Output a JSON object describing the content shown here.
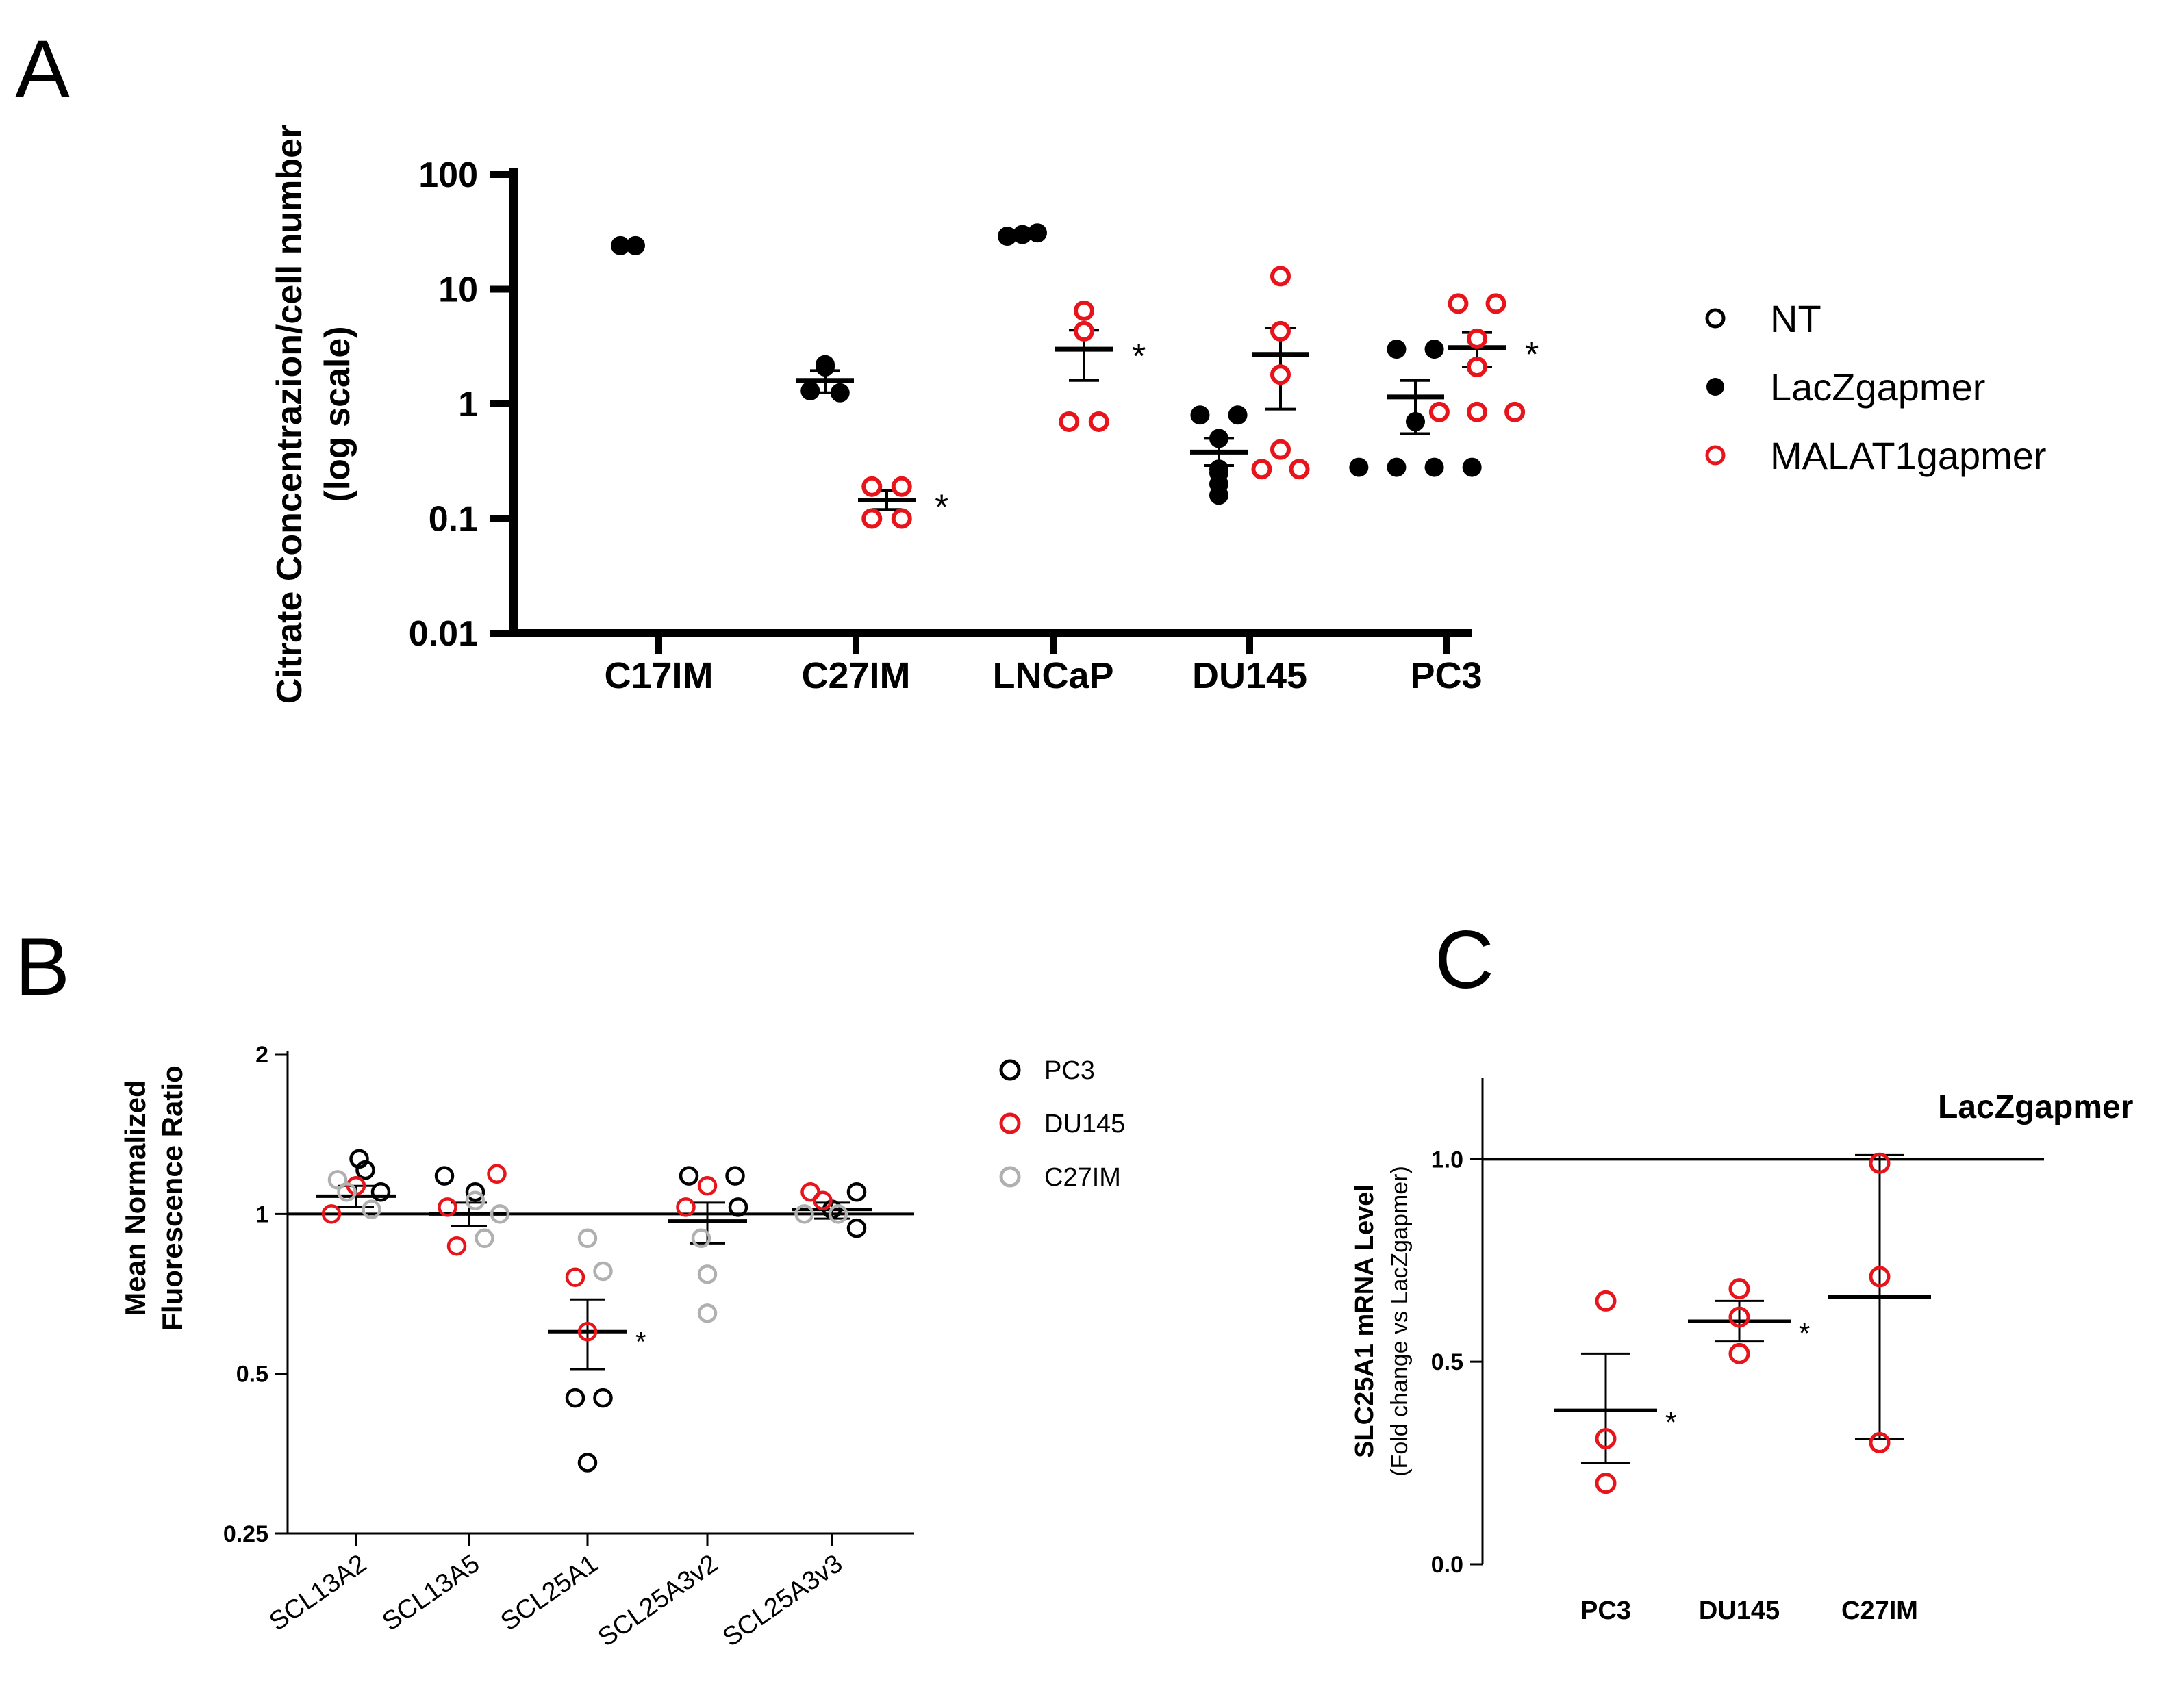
{
  "panels": {
    "a": "A",
    "b": "B",
    "c": "C"
  },
  "colors": {
    "black": "#000000",
    "red": "#e8141b",
    "gray": "#b0b0b0"
  },
  "chart_data": [
    {
      "id": "A",
      "type": "scatter",
      "yscale": "log",
      "ylabel_line1": "Citrate Concentrazion/cell number",
      "ylabel_line2": "(log scale)",
      "ylim": [
        0.01,
        100
      ],
      "yticks": [
        {
          "value": 100,
          "label": "100"
        },
        {
          "value": 10,
          "label": "10"
        },
        {
          "value": 1,
          "label": "1"
        },
        {
          "value": 0.1,
          "label": "0.1"
        },
        {
          "value": 0.01,
          "label": "0.01"
        }
      ],
      "categories": [
        "C17IM",
        "C27IM",
        "LNCaP",
        "DU145",
        "PC3"
      ],
      "legend": [
        {
          "name": "NT",
          "marker": "open",
          "color": "#000000"
        },
        {
          "name": "LacZgapmer",
          "marker": "filled",
          "color": "#000000"
        },
        {
          "name": "MALAT1gapmer",
          "marker": "open",
          "color": "#e8141b"
        }
      ],
      "groups": [
        {
          "category": "C17IM",
          "series": "LacZgapmer",
          "marker": "filled",
          "color": "#000000",
          "slot": -0.5,
          "mean": 24,
          "sem_low": 24,
          "sem_high": 24,
          "connect": true,
          "points": [
            24,
            24
          ],
          "star": ""
        },
        {
          "category": "C27IM",
          "series": "LacZgapmer",
          "marker": "filled",
          "color": "#000000",
          "slot": -0.5,
          "mean": 1.6,
          "sem_low": 1.25,
          "sem_high": 1.95,
          "points": [
            2.2,
            2.1,
            1.3,
            1.25
          ],
          "star": ""
        },
        {
          "category": "C27IM",
          "series": "MALAT1gapmer",
          "marker": "open",
          "color": "#e8141b",
          "slot": 0.5,
          "mean": 0.145,
          "sem_low": 0.12,
          "sem_high": 0.175,
          "points": [
            0.19,
            0.19,
            0.1,
            0.1
          ],
          "star": "*"
        },
        {
          "category": "LNCaP",
          "series": "LacZgapmer",
          "marker": "filled",
          "color": "#000000",
          "slot": -0.5,
          "mean": 30,
          "sem_low": 30,
          "sem_high": 30,
          "connect": true,
          "points": [
            29,
            30,
            31
          ],
          "star": ""
        },
        {
          "category": "LNCaP",
          "series": "MALAT1gapmer",
          "marker": "open",
          "color": "#e8141b",
          "slot": 0.5,
          "mean": 3,
          "sem_low": 1.6,
          "sem_high": 4.4,
          "points": [
            6.5,
            4.3,
            0.7,
            0.7
          ],
          "star": "*"
        },
        {
          "category": "DU145",
          "series": "LacZgapmer",
          "marker": "filled",
          "color": "#000000",
          "slot": -0.5,
          "mean": 0.38,
          "sem_low": 0.29,
          "sem_high": 0.5,
          "points": [
            0.8,
            0.8,
            0.5,
            0.27,
            0.25,
            0.2,
            0.16
          ],
          "star": ""
        },
        {
          "category": "DU145",
          "series": "MALAT1gapmer",
          "marker": "open",
          "color": "#e8141b",
          "slot": 0.5,
          "mean": 2.7,
          "sem_low": 0.9,
          "sem_high": 4.6,
          "points": [
            13,
            4.3,
            1.8,
            0.4,
            0.27,
            0.27
          ],
          "star": ""
        },
        {
          "category": "PC3",
          "series": "LacZgapmer",
          "marker": "filled",
          "color": "#000000",
          "slot": -0.5,
          "mean": 1.15,
          "sem_low": 0.55,
          "sem_high": 1.6,
          "points": [
            3,
            3,
            0.7,
            0.28,
            0.28,
            0.28,
            0.28
          ],
          "star": ""
        },
        {
          "category": "PC3",
          "series": "MALAT1gapmer",
          "marker": "open",
          "color": "#e8141b",
          "slot": 0.5,
          "mean": 3.1,
          "sem_low": 2.1,
          "sem_high": 4.2,
          "points": [
            7.5,
            7.5,
            3.7,
            2.1,
            0.85,
            0.85,
            0.85
          ],
          "star": "*"
        }
      ]
    },
    {
      "id": "B",
      "type": "scatter",
      "yscale": "log2",
      "ylabel_line1": "Mean Normalized",
      "ylabel_line2": "Fluorescence Ratio",
      "ylim": [
        0.25,
        2
      ],
      "yticks": [
        {
          "value": 2,
          "label": "2"
        },
        {
          "value": 1,
          "label": "1"
        },
        {
          "value": 0.5,
          "label": "0.5"
        },
        {
          "value": 0.25,
          "label": "0.25"
        }
      ],
      "reference_line": 1,
      "categories": [
        "SCL13A2",
        "SCL13A5",
        "SCL25A1",
        "SCL25A3v2",
        "SCL25A3v3"
      ],
      "legend": [
        {
          "name": "PC3",
          "color": "#000000"
        },
        {
          "name": "DU145",
          "color": "#e8141b"
        },
        {
          "name": "C27IM",
          "color": "#b0b0b0"
        }
      ],
      "groups": [
        {
          "category": "SCL13A2",
          "mean": 1.08,
          "sem_low": 1.03,
          "sem_high": 1.13,
          "star": "",
          "points": [
            {
              "line": "PC3",
              "y": 1.27,
              "dx": 0.05
            },
            {
              "line": "PC3",
              "y": 1.21,
              "dx": 0.15
            },
            {
              "line": "PC3",
              "y": 1.1,
              "dx": 0.4
            },
            {
              "line": "DU145",
              "y": 1.0,
              "dx": -0.4
            },
            {
              "line": "DU145",
              "y": 1.13,
              "dx": 0.0
            },
            {
              "line": "C27IM",
              "y": 1.16,
              "dx": -0.3
            },
            {
              "line": "C27IM",
              "y": 1.1,
              "dx": -0.15
            },
            {
              "line": "C27IM",
              "y": 1.02,
              "dx": 0.25
            }
          ]
        },
        {
          "category": "SCL13A5",
          "mean": 1.0,
          "sem_low": 0.95,
          "sem_high": 1.05,
          "star": "",
          "points": [
            {
              "line": "PC3",
              "y": 1.18,
              "dx": -0.4
            },
            {
              "line": "PC3",
              "y": 1.1,
              "dx": 0.1
            },
            {
              "line": "DU145",
              "y": 1.19,
              "dx": 0.45
            },
            {
              "line": "DU145",
              "y": 1.03,
              "dx": -0.35
            },
            {
              "line": "DU145",
              "y": 0.87,
              "dx": -0.2
            },
            {
              "line": "C27IM",
              "y": 1.06,
              "dx": 0.1
            },
            {
              "line": "C27IM",
              "y": 1.0,
              "dx": 0.5
            },
            {
              "line": "C27IM",
              "y": 0.9,
              "dx": 0.25
            }
          ]
        },
        {
          "category": "SCL25A1",
          "mean": 0.6,
          "sem_low": 0.51,
          "sem_high": 0.69,
          "star": "*",
          "points": [
            {
              "line": "PC3",
              "y": 0.45,
              "dx": -0.2
            },
            {
              "line": "PC3",
              "y": 0.45,
              "dx": 0.25
            },
            {
              "line": "PC3",
              "y": 0.34,
              "dx": 0.0
            },
            {
              "line": "DU145",
              "y": 0.76,
              "dx": -0.2
            },
            {
              "line": "DU145",
              "y": 0.6,
              "dx": 0.0
            },
            {
              "line": "C27IM",
              "y": 0.9,
              "dx": 0.0
            },
            {
              "line": "C27IM",
              "y": 0.78,
              "dx": 0.25
            }
          ]
        },
        {
          "category": "SCL25A3v2",
          "mean": 0.97,
          "sem_low": 0.88,
          "sem_high": 1.05,
          "star": "",
          "points": [
            {
              "line": "PC3",
              "y": 1.18,
              "dx": -0.3
            },
            {
              "line": "PC3",
              "y": 1.18,
              "dx": 0.45
            },
            {
              "line": "PC3",
              "y": 1.03,
              "dx": 0.5
            },
            {
              "line": "DU145",
              "y": 1.13,
              "dx": 0.0
            },
            {
              "line": "DU145",
              "y": 1.03,
              "dx": -0.35
            },
            {
              "line": "C27IM",
              "y": 0.9,
              "dx": -0.1
            },
            {
              "line": "C27IM",
              "y": 0.77,
              "dx": 0.0
            },
            {
              "line": "C27IM",
              "y": 0.65,
              "dx": 0.0
            }
          ]
        },
        {
          "category": "SCL25A3v3",
          "mean": 1.02,
          "sem_low": 0.98,
          "sem_high": 1.05,
          "star": "",
          "points": [
            {
              "line": "PC3",
              "y": 1.1,
              "dx": 0.4
            },
            {
              "line": "PC3",
              "y": 1.02,
              "dx": 0.0
            },
            {
              "line": "PC3",
              "y": 0.94,
              "dx": 0.4
            },
            {
              "line": "DU145",
              "y": 1.1,
              "dx": -0.35
            },
            {
              "line": "DU145",
              "y": 1.06,
              "dx": -0.15
            },
            {
              "line": "C27IM",
              "y": 1.0,
              "dx": -0.45
            },
            {
              "line": "C27IM",
              "y": 1.0,
              "dx": 0.1
            }
          ]
        }
      ]
    },
    {
      "id": "C",
      "type": "scatter",
      "ylabel_line1": "SLC25A1 mRNA Level",
      "ylabel_line2": "(Fold change vs LacZgapmer)",
      "ylim": [
        0,
        1.2
      ],
      "yticks": [
        {
          "value": 1.0,
          "label": "1.0"
        },
        {
          "value": 0.5,
          "label": "0.5"
        },
        {
          "value": 0.0,
          "label": "0.0"
        }
      ],
      "reference_line": 1,
      "reference_label": "LacZgapmer",
      "categories": [
        "PC3",
        "DU145",
        "C27IM"
      ],
      "groups": [
        {
          "category": "PC3",
          "mean": 0.38,
          "sem_low": 0.25,
          "sem_high": 0.52,
          "star": "*",
          "points": [
            0.65,
            0.31,
            0.2
          ]
        },
        {
          "category": "DU145",
          "mean": 0.6,
          "sem_low": 0.55,
          "sem_high": 0.65,
          "star": "*",
          "points": [
            0.68,
            0.61,
            0.52
          ]
        },
        {
          "category": "C27IM",
          "mean": 0.66,
          "sem_low": 0.31,
          "sem_high": 1.01,
          "star": "",
          "points": [
            0.99,
            0.71,
            0.3
          ]
        }
      ]
    }
  ]
}
